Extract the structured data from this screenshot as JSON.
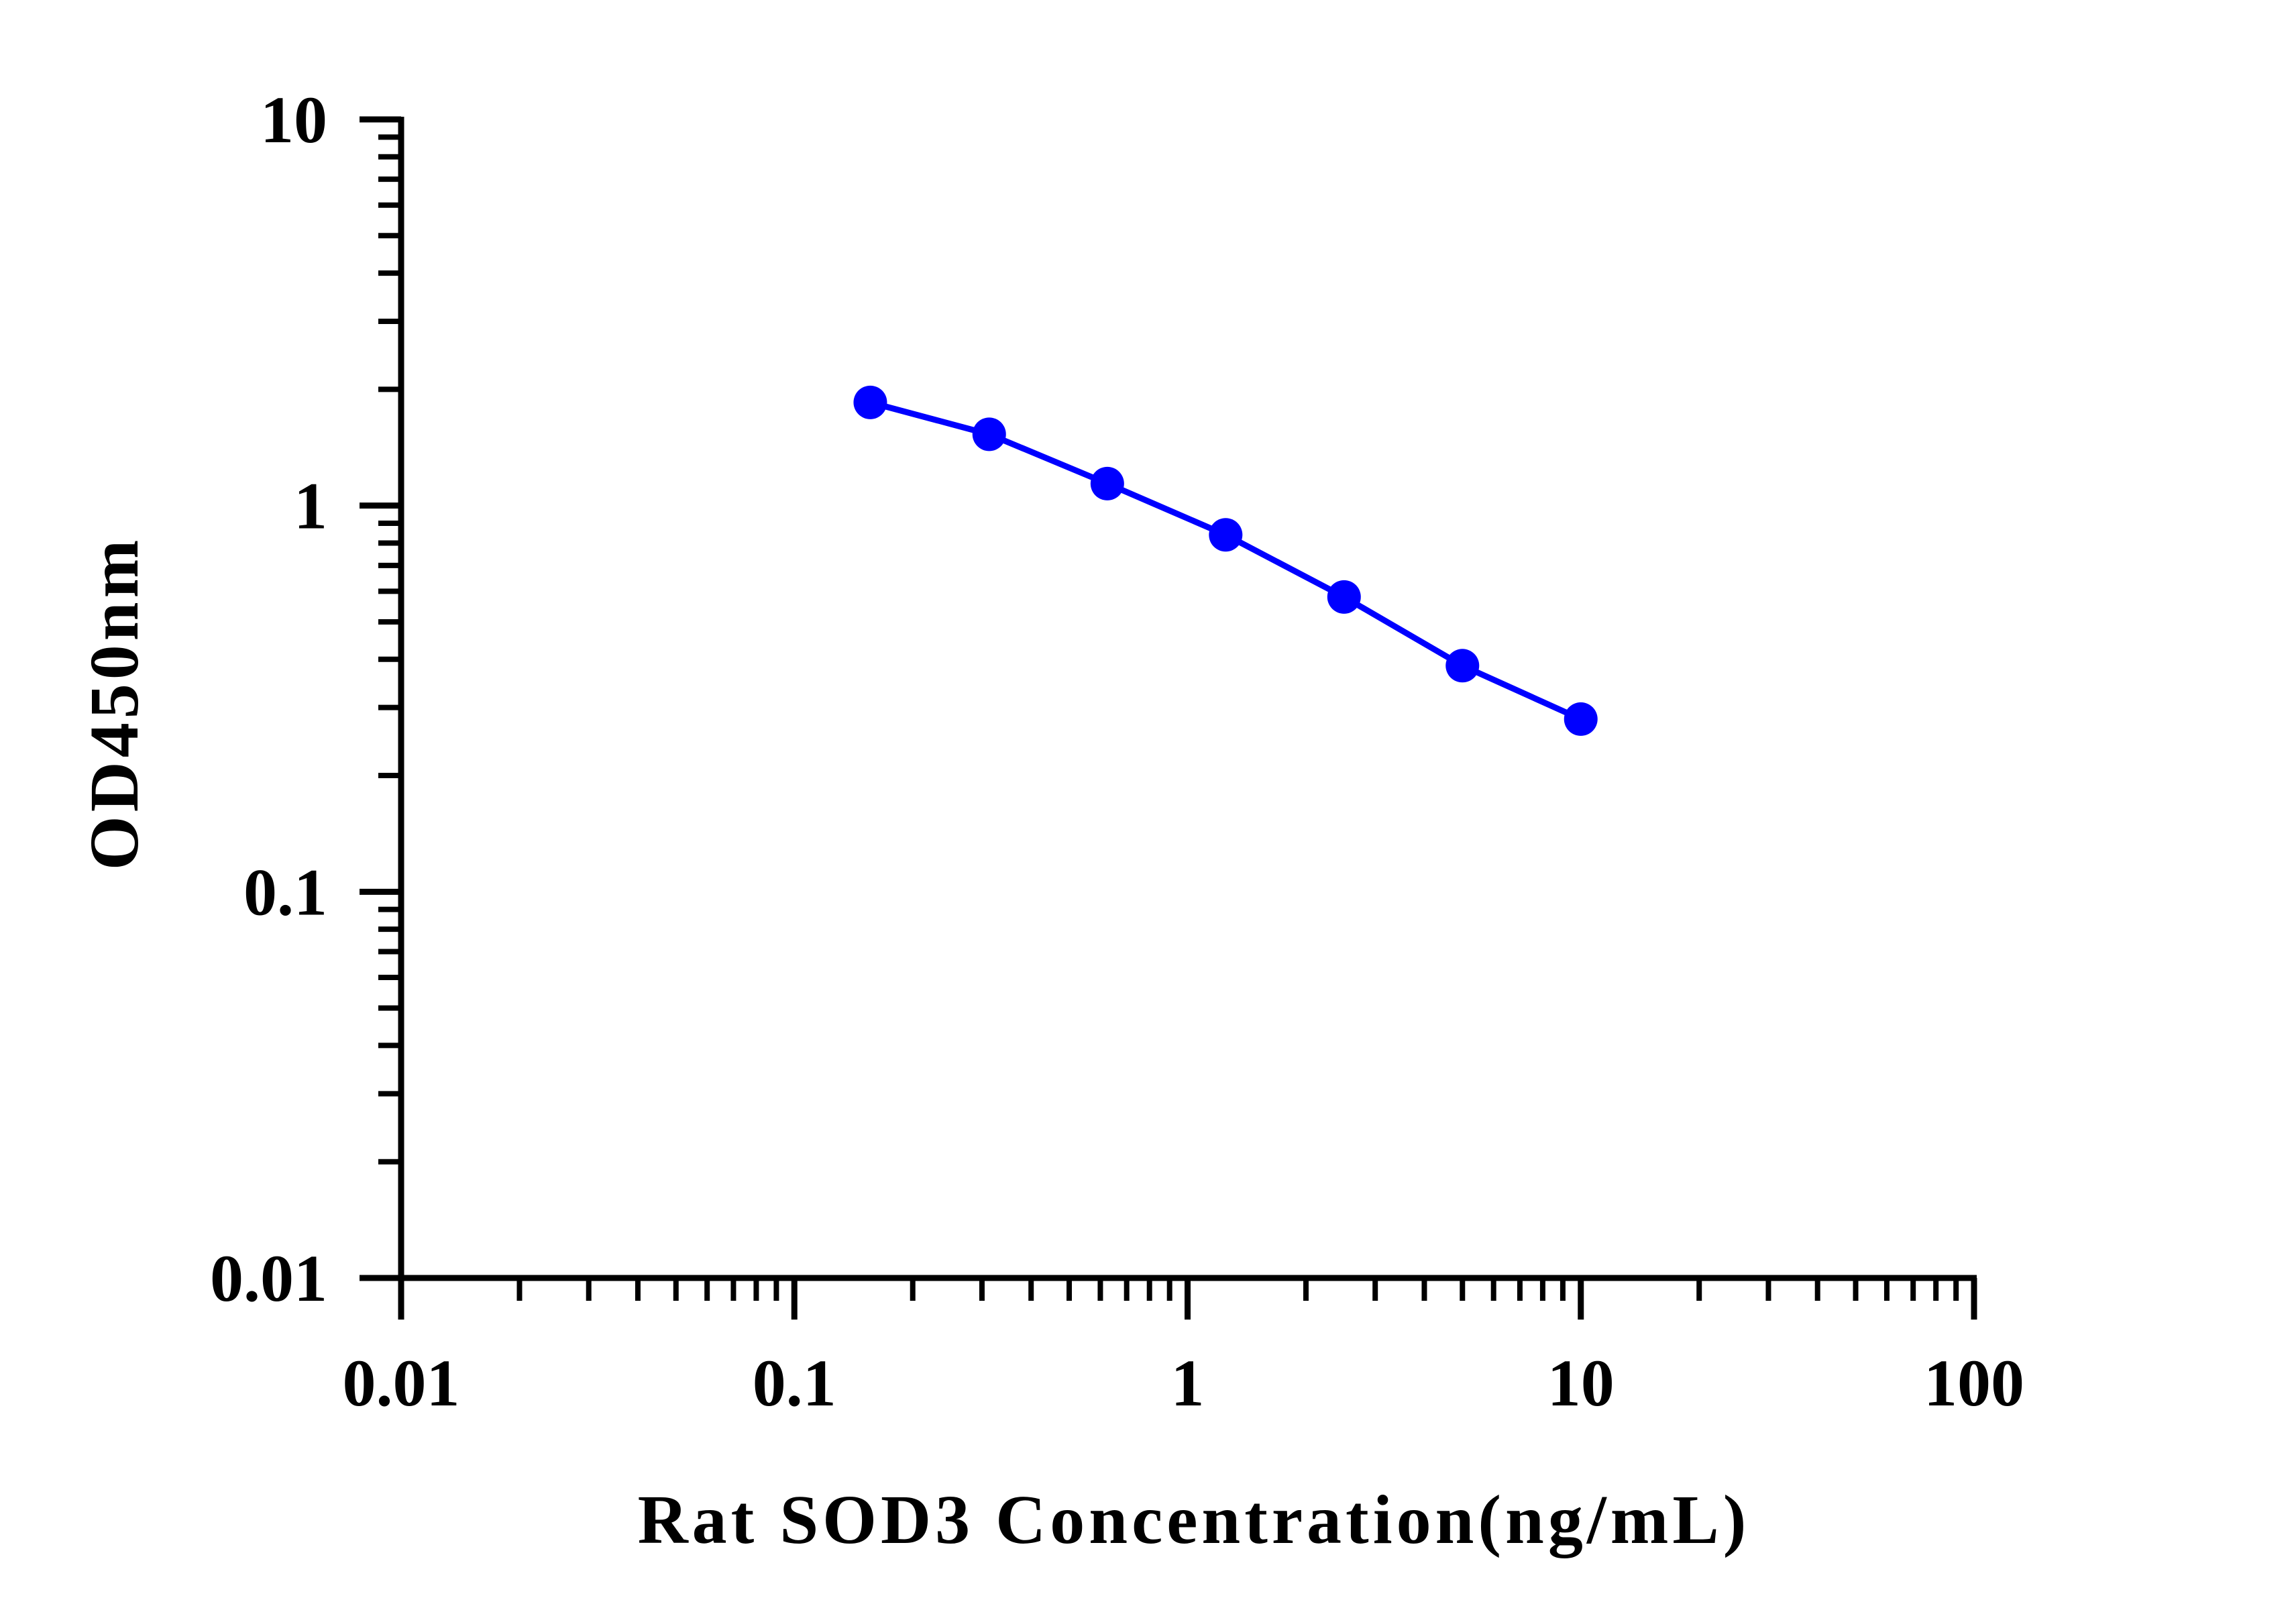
{
  "chart_data": {
    "type": "line",
    "title": "",
    "xlabel": "Rat SOD3 Concentration(ng/mL)",
    "ylabel": "OD450nm",
    "xscale": "log",
    "yscale": "log",
    "xlim": [
      0.01,
      100
    ],
    "ylim": [
      0.01,
      10
    ],
    "xticks": [
      {
        "value": 0.01,
        "label": "0.01"
      },
      {
        "value": 0.1,
        "label": "0.1"
      },
      {
        "value": 1,
        "label": "1"
      },
      {
        "value": 10,
        "label": "10"
      },
      {
        "value": 100,
        "label": "100"
      }
    ],
    "yticks": [
      {
        "value": 0.01,
        "label": "0.01"
      },
      {
        "value": 0.1,
        "label": "0.1"
      },
      {
        "value": 1,
        "label": "1"
      },
      {
        "value": 10,
        "label": "10"
      }
    ],
    "grid": false,
    "series": [
      {
        "color": "#0000ff",
        "marker": "circle",
        "x": [
          0.156,
          0.313,
          0.625,
          1.25,
          2.5,
          5,
          10
        ],
        "y": [
          1.85,
          1.53,
          1.14,
          0.84,
          0.58,
          0.385,
          0.28
        ]
      }
    ]
  }
}
